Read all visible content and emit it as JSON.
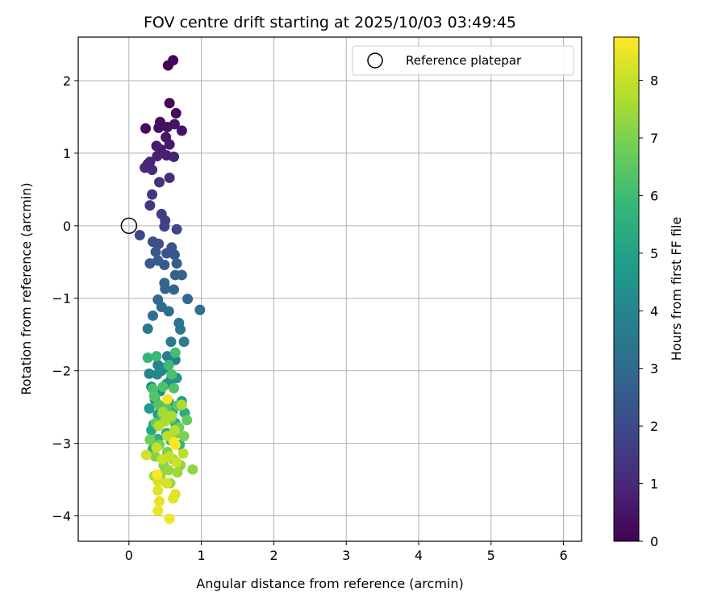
{
  "chart_data": {
    "type": "scatter",
    "title": "FOV centre drift starting at 2025/10/03 03:49:45",
    "xlabel": "Angular distance from reference (arcmin)",
    "ylabel": "Rotation from reference (arcmin)",
    "xlim": [
      -0.7,
      6.25
    ],
    "ylim": [
      -4.35,
      2.6
    ],
    "x_ticks": [
      0,
      1,
      2,
      3,
      4,
      5,
      6
    ],
    "y_ticks": [
      -4,
      -3,
      -2,
      -1,
      0,
      1,
      2
    ],
    "x_tick_labels": [
      "0",
      "1",
      "2",
      "3",
      "4",
      "5",
      "6"
    ],
    "y_tick_labels": [
      "−4",
      "−3",
      "−2",
      "−1",
      "0",
      "1",
      "2"
    ],
    "grid": true,
    "legend": {
      "position": "upper-right",
      "entries": [
        "Reference platepar"
      ]
    },
    "reference_point": {
      "label": "Reference platepar",
      "x": 0.0,
      "y": 0.0
    },
    "colorbar": {
      "label": "Hours from first FF file",
      "range": [
        0,
        8.75
      ],
      "ticks": [
        0,
        1,
        2,
        3,
        4,
        5,
        6,
        7,
        8
      ],
      "tick_labels": [
        "0",
        "1",
        "2",
        "3",
        "4",
        "5",
        "6",
        "7",
        "8"
      ],
      "colormap": "viridis",
      "stops": [
        "#440154",
        "#482878",
        "#3e4989",
        "#31688e",
        "#26828e",
        "#1f9e89",
        "#35b779",
        "#6ece58",
        "#b5de2b",
        "#fde725"
      ]
    },
    "series": [
      {
        "name": "FOV centre drift",
        "points": [
          [
            0.54,
            2.21,
            0.05
          ],
          [
            0.61,
            2.28,
            0.1
          ],
          [
            0.56,
            1.69,
            0.15
          ],
          [
            0.65,
            1.55,
            0.2
          ],
          [
            0.23,
            1.34,
            0.25
          ],
          [
            0.41,
            1.35,
            0.3
          ],
          [
            0.43,
            1.43,
            0.35
          ],
          [
            0.53,
            1.36,
            0.4
          ],
          [
            0.63,
            1.4,
            0.45
          ],
          [
            0.73,
            1.31,
            0.5
          ],
          [
            0.51,
            1.22,
            0.55
          ],
          [
            0.56,
            1.12,
            0.6
          ],
          [
            0.38,
            1.1,
            0.65
          ],
          [
            0.44,
            1.05,
            0.7
          ],
          [
            0.52,
            0.97,
            0.75
          ],
          [
            0.39,
            0.96,
            0.8
          ],
          [
            0.62,
            0.95,
            0.85
          ],
          [
            0.29,
            0.88,
            0.9
          ],
          [
            0.26,
            0.85,
            0.95
          ],
          [
            0.22,
            0.8,
            1.0
          ],
          [
            0.32,
            0.77,
            1.05
          ],
          [
            0.56,
            0.66,
            1.15
          ],
          [
            0.42,
            0.6,
            1.25
          ],
          [
            0.32,
            0.43,
            1.35
          ],
          [
            0.29,
            0.28,
            1.45
          ],
          [
            0.45,
            0.16,
            1.55
          ],
          [
            0.5,
            0.07,
            1.65
          ],
          [
            0.49,
            -0.01,
            1.75
          ],
          [
            0.66,
            -0.05,
            1.85
          ],
          [
            0.15,
            -0.13,
            1.95
          ],
          [
            0.33,
            -0.22,
            2.05
          ],
          [
            0.41,
            -0.25,
            2.15
          ],
          [
            0.52,
            -0.38,
            2.25
          ],
          [
            0.59,
            -0.3,
            2.3
          ],
          [
            0.63,
            -0.4,
            2.35
          ],
          [
            0.37,
            -0.36,
            2.4
          ],
          [
            0.29,
            -0.52,
            2.45
          ],
          [
            0.4,
            -0.48,
            2.5
          ],
          [
            0.49,
            -0.54,
            2.55
          ],
          [
            0.66,
            -0.52,
            2.6
          ],
          [
            0.64,
            -0.68,
            2.7
          ],
          [
            0.73,
            -0.68,
            2.75
          ],
          [
            0.49,
            -0.79,
            2.8
          ],
          [
            0.5,
            -0.87,
            2.85
          ],
          [
            0.62,
            -0.88,
            2.9
          ],
          [
            0.81,
            -1.01,
            2.95
          ],
          [
            0.4,
            -1.02,
            3.0
          ],
          [
            0.45,
            -1.12,
            3.05
          ],
          [
            0.55,
            -1.18,
            3.1
          ],
          [
            0.98,
            -1.16,
            3.15
          ],
          [
            0.33,
            -1.24,
            3.25
          ],
          [
            0.69,
            -1.34,
            3.35
          ],
          [
            0.71,
            -1.43,
            3.45
          ],
          [
            0.26,
            -1.42,
            3.5
          ],
          [
            0.58,
            -1.6,
            3.6
          ],
          [
            0.76,
            -1.6,
            3.65
          ],
          [
            0.53,
            -1.8,
            3.75
          ],
          [
            0.64,
            -1.85,
            3.8
          ],
          [
            0.4,
            -1.92,
            3.9
          ],
          [
            0.49,
            -1.96,
            3.95
          ],
          [
            0.28,
            -2.04,
            4.0
          ],
          [
            0.39,
            -2.05,
            4.05
          ],
          [
            0.45,
            -2.0,
            4.1
          ],
          [
            0.31,
            -2.22,
            4.2
          ],
          [
            0.43,
            -2.28,
            4.3
          ],
          [
            0.52,
            -2.18,
            4.35
          ],
          [
            0.58,
            -2.12,
            4.4
          ],
          [
            0.66,
            -2.1,
            4.45
          ],
          [
            0.36,
            -2.4,
            4.55
          ],
          [
            0.55,
            -2.43,
            4.6
          ],
          [
            0.28,
            -2.52,
            4.75
          ],
          [
            0.4,
            -2.6,
            4.85
          ],
          [
            0.6,
            -2.56,
            4.9
          ],
          [
            0.73,
            -2.42,
            4.95
          ],
          [
            0.34,
            -2.74,
            5.05
          ],
          [
            0.47,
            -2.7,
            5.1
          ],
          [
            0.31,
            -2.82,
            5.2
          ],
          [
            0.52,
            -2.86,
            5.3
          ],
          [
            0.64,
            -2.72,
            5.35
          ],
          [
            0.77,
            -2.58,
            5.4
          ],
          [
            0.4,
            -2.94,
            5.5
          ],
          [
            0.58,
            -2.96,
            5.55
          ],
          [
            0.33,
            -3.08,
            5.65
          ],
          [
            0.7,
            -3.02,
            5.7
          ],
          [
            0.26,
            -1.82,
            5.8
          ],
          [
            0.38,
            -1.8,
            5.9
          ],
          [
            0.55,
            -1.92,
            6.0
          ],
          [
            0.64,
            -1.75,
            6.1
          ],
          [
            0.59,
            -2.05,
            6.15
          ],
          [
            0.33,
            -2.25,
            6.2
          ],
          [
            0.47,
            -2.22,
            6.25
          ],
          [
            0.62,
            -2.24,
            6.3
          ],
          [
            0.35,
            -2.35,
            6.35
          ],
          [
            0.41,
            -2.47,
            6.4
          ],
          [
            0.52,
            -2.51,
            6.45
          ],
          [
            0.67,
            -2.48,
            6.5
          ],
          [
            0.46,
            -2.6,
            6.55
          ],
          [
            0.8,
            -2.68,
            6.6
          ],
          [
            0.37,
            -2.72,
            6.65
          ],
          [
            0.58,
            -2.66,
            6.7
          ],
          [
            0.69,
            -2.78,
            6.75
          ],
          [
            0.29,
            -2.95,
            6.8
          ],
          [
            0.42,
            -3.02,
            6.85
          ],
          [
            0.63,
            -2.88,
            6.9
          ],
          [
            0.53,
            -3.12,
            6.95
          ],
          [
            0.76,
            -2.9,
            7.0
          ],
          [
            0.36,
            -3.18,
            7.05
          ],
          [
            0.48,
            -3.3,
            7.1
          ],
          [
            0.61,
            -3.22,
            7.15
          ],
          [
            0.71,
            -3.3,
            7.2
          ],
          [
            0.88,
            -3.36,
            7.25
          ],
          [
            0.44,
            -3.43,
            7.3
          ],
          [
            0.55,
            -3.37,
            7.35
          ],
          [
            0.67,
            -3.4,
            7.4
          ],
          [
            0.57,
            -3.55,
            7.45
          ],
          [
            0.35,
            -3.45,
            7.5
          ],
          [
            0.47,
            -2.57,
            7.55
          ],
          [
            0.59,
            -2.62,
            7.6
          ],
          [
            0.73,
            -2.47,
            7.65
          ],
          [
            0.5,
            -2.7,
            7.7
          ],
          [
            0.41,
            -2.76,
            7.75
          ],
          [
            0.63,
            -2.82,
            7.8
          ],
          [
            0.53,
            -2.9,
            7.85
          ],
          [
            0.75,
            -3.14,
            7.9
          ],
          [
            0.38,
            -3.06,
            7.95
          ],
          [
            0.56,
            -3.18,
            8.0
          ],
          [
            0.66,
            -3.26,
            8.05
          ],
          [
            0.46,
            -3.22,
            8.1
          ],
          [
            0.24,
            -3.16,
            8.15
          ],
          [
            0.4,
            -3.52,
            8.2
          ],
          [
            0.52,
            -3.55,
            8.25
          ],
          [
            0.64,
            -3.7,
            8.3
          ],
          [
            0.4,
            -3.65,
            8.35
          ],
          [
            0.61,
            -3.76,
            8.4
          ],
          [
            0.42,
            -3.8,
            8.45
          ],
          [
            0.4,
            -3.93,
            8.5
          ],
          [
            0.56,
            -4.04,
            8.55
          ],
          [
            0.53,
            -2.39,
            8.6
          ],
          [
            0.62,
            -2.98,
            8.65
          ],
          [
            0.39,
            -3.43,
            8.7
          ],
          [
            0.64,
            -3.02,
            8.75
          ]
        ]
      }
    ]
  }
}
